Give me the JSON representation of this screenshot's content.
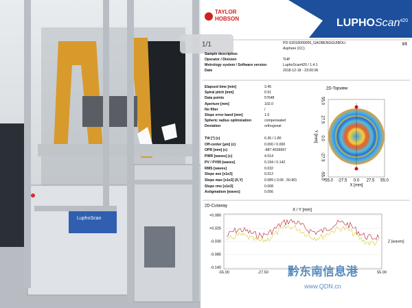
{
  "photo": {
    "machine_label": "LuphoScan"
  },
  "header": {
    "brand_line1": "TAYLOR",
    "brand_line2": "HOBSON",
    "product_bold": "LUPHO",
    "product_italic": "Scan",
    "model": "420"
  },
  "page_badge": "1/1",
  "page_number": "1/1",
  "info": {
    "rows": [
      {
        "value": "PD-S2018000005_GAOBENGGUIBOLI"
      },
      {
        "value": "Asphere (CC)"
      },
      {
        "label": "Sample description"
      },
      {
        "label": "Operator / Division",
        "value": "THP"
      },
      {
        "label": "Metrology system / Software version",
        "value": "LuphoScan420 / 1.4.1"
      },
      {
        "label": "Date",
        "value": "2018-12-18  -  23:00:06"
      }
    ]
  },
  "parameters": {
    "rows": [
      [
        "Elapsed time [min]",
        "3.45"
      ],
      [
        "Spiral pitch [mm]",
        "0.51"
      ],
      [
        "Data points",
        "57648"
      ],
      [
        "Aperture [mm]",
        "102.0"
      ],
      [
        "No filter",
        "/"
      ],
      [
        "Slope error band [mm]",
        "1.0"
      ],
      [
        "Spheric radius optimization",
        "compensated"
      ],
      [
        "Deviation",
        "orthogonal"
      ]
    ]
  },
  "results": {
    "rows": [
      [
        "Tilt [°]  (c)",
        "6.36 / 1.80"
      ],
      [
        "Off-center [µm]  (c)",
        "0.000 / 0.000"
      ],
      [
        "OPR [mm]  (c)",
        "-887.4539997"
      ],
      [
        "PWR [waves]  (c)",
        "4.014"
      ],
      [
        "PV / PV99 [waves]",
        "0.194 / 0.142"
      ],
      [
        "RMS [waves]",
        "0.032"
      ],
      [
        "Slope ave [x1e3]",
        "0.012"
      ],
      [
        "Slope max [x1e3]  (X,Y)",
        "0.089  (-3.06 , 50.80)"
      ],
      [
        "Slope rms [x1e3]",
        "0.008"
      ],
      [
        "Astigmatism [waves]",
        "0.056"
      ]
    ]
  },
  "topview": {
    "title": "2D-Topview",
    "x_label": "X [mm]",
    "y_label": "Y [mm]",
    "xticks": [
      "-55.0",
      "-27.5",
      "0.0",
      "27.5",
      "55.0"
    ],
    "yticks": [
      "55.0",
      "27.5",
      "0.0",
      "-27.5",
      "-55.0"
    ]
  },
  "cutaway": {
    "title": "2D-Cutaway",
    "x_label": "X / Y [mm]",
    "y_label": "Z [waves]",
    "yticks": [
      "+0.080",
      "+0.025",
      "-0.030",
      "-0.085",
      "-0.140"
    ],
    "xticks": [
      "-55.00",
      "-27.50",
      "55.00"
    ]
  },
  "watermark": {
    "title": "黔东南信息港",
    "url": "www.QDN.cn"
  }
}
